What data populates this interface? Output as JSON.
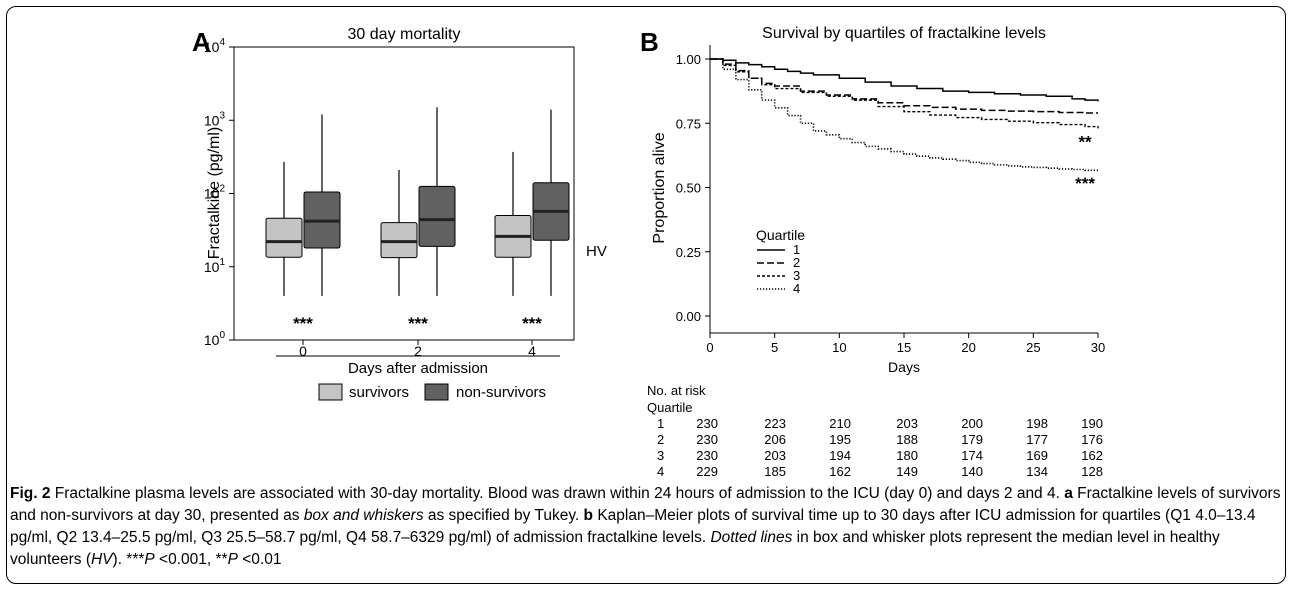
{
  "chart_data": [
    {
      "type": "box",
      "panel_label": "A",
      "title": "30 day mortality",
      "ylabel": "Fractalkine (pg/ml)",
      "xlabel": "Days after admission",
      "yscale": "log",
      "ylim": [
        1,
        10000
      ],
      "y_ticks": [
        {
          "value": 1,
          "base": "10",
          "exp": "0"
        },
        {
          "value": 10,
          "base": "10",
          "exp": "1"
        },
        {
          "value": 100,
          "base": "10",
          "exp": "2"
        },
        {
          "value": 1000,
          "base": "10",
          "exp": "3"
        },
        {
          "value": 10000,
          "base": "10",
          "exp": "4"
        }
      ],
      "categories": [
        "0",
        "2",
        "4"
      ],
      "series": [
        {
          "name": "survivors",
          "color": "#c4c4c4",
          "boxes": [
            {
              "whisker_low": 4,
              "q1": 13.5,
              "median": 22,
              "q3": 46,
              "whisker_high": 270
            },
            {
              "whisker_low": 4,
              "q1": 13.3,
              "median": 22,
              "q3": 40,
              "whisker_high": 210
            },
            {
              "whisker_low": 4,
              "q1": 13.5,
              "median": 26,
              "q3": 50,
              "whisker_high": 370
            }
          ]
        },
        {
          "name": "non-survivors",
          "color": "#616161",
          "boxes": [
            {
              "whisker_low": 4,
              "q1": 18,
              "median": 42,
              "q3": 105,
              "whisker_high": 1200
            },
            {
              "whisker_low": 4,
              "q1": 19,
              "median": 44,
              "q3": 125,
              "whisker_high": 1500
            },
            {
              "whisker_low": 4,
              "q1": 23,
              "median": 57,
              "q3": 140,
              "whisker_high": 1400
            }
          ]
        }
      ],
      "significance": [
        "***",
        "***",
        "***"
      ],
      "reference_label": "HV",
      "reference_value": 10
    },
    {
      "type": "line",
      "panel_label": "B",
      "title": "Survival by quartiles of fractalkine levels",
      "xlabel": "Days",
      "ylabel": "Proportion alive",
      "xlim": [
        0,
        30
      ],
      "ylim": [
        0,
        1
      ],
      "x_ticks": [
        "0",
        "5",
        "10",
        "15",
        "20",
        "25",
        "30"
      ],
      "y_ticks": [
        "0.00",
        "0.25",
        "0.50",
        "0.75",
        "1.00"
      ],
      "legend_title": "Quartile",
      "legend_position": "lower-left",
      "series": [
        {
          "name": "1",
          "dash": "solid",
          "points": [
            [
              0,
              1.0
            ],
            [
              1,
              0.995
            ],
            [
              2,
              0.985
            ],
            [
              3,
              0.978
            ],
            [
              4,
              0.97
            ],
            [
              5,
              0.96
            ],
            [
              6,
              0.952
            ],
            [
              7,
              0.945
            ],
            [
              8,
              0.938
            ],
            [
              10,
              0.925
            ],
            [
              12,
              0.91
            ],
            [
              14,
              0.895
            ],
            [
              16,
              0.885
            ],
            [
              18,
              0.875
            ],
            [
              20,
              0.87
            ],
            [
              22,
              0.865
            ],
            [
              24,
              0.86
            ],
            [
              26,
              0.855
            ],
            [
              28,
              0.845
            ],
            [
              29,
              0.84
            ],
            [
              30,
              0.835
            ]
          ]
        },
        {
          "name": "2",
          "dash": "dashed",
          "points": [
            [
              0,
              1.0
            ],
            [
              1,
              0.98
            ],
            [
              2,
              0.955
            ],
            [
              3,
              0.925
            ],
            [
              4,
              0.905
            ],
            [
              5,
              0.895
            ],
            [
              7,
              0.875
            ],
            [
              9,
              0.86
            ],
            [
              11,
              0.845
            ],
            [
              13,
              0.83
            ],
            [
              15,
              0.818
            ],
            [
              17,
              0.812
            ],
            [
              19,
              0.805
            ],
            [
              21,
              0.8
            ],
            [
              23,
              0.797
            ],
            [
              25,
              0.795
            ],
            [
              27,
              0.792
            ],
            [
              29,
              0.79
            ],
            [
              30,
              0.79
            ]
          ]
        },
        {
          "name": "3",
          "dash": "short-dashed",
          "points": [
            [
              0,
              1.0
            ],
            [
              1,
              0.975
            ],
            [
              2,
              0.95
            ],
            [
              3,
              0.925
            ],
            [
              4,
              0.9
            ],
            [
              5,
              0.885
            ],
            [
              7,
              0.87
            ],
            [
              9,
              0.855
            ],
            [
              11,
              0.84
            ],
            [
              13,
              0.815
            ],
            [
              15,
              0.795
            ],
            [
              17,
              0.782
            ],
            [
              19,
              0.772
            ],
            [
              21,
              0.765
            ],
            [
              23,
              0.758
            ],
            [
              25,
              0.752
            ],
            [
              27,
              0.745
            ],
            [
              29,
              0.737
            ],
            [
              30,
              0.73
            ]
          ]
        },
        {
          "name": "4",
          "dash": "dotted",
          "points": [
            [
              0,
              1.0
            ],
            [
              1,
              0.96
            ],
            [
              2,
              0.92
            ],
            [
              3,
              0.88
            ],
            [
              4,
              0.84
            ],
            [
              5,
              0.81
            ],
            [
              6,
              0.78
            ],
            [
              7,
              0.75
            ],
            [
              8,
              0.72
            ],
            [
              9,
              0.705
            ],
            [
              10,
              0.69
            ],
            [
              11,
              0.675
            ],
            [
              12,
              0.66
            ],
            [
              13,
              0.65
            ],
            [
              14,
              0.64
            ],
            [
              15,
              0.63
            ],
            [
              16,
              0.622
            ],
            [
              17,
              0.615
            ],
            [
              18,
              0.61
            ],
            [
              19,
              0.605
            ],
            [
              20,
              0.598
            ],
            [
              21,
              0.593
            ],
            [
              22,
              0.588
            ],
            [
              23,
              0.584
            ],
            [
              24,
              0.58
            ],
            [
              25,
              0.578
            ],
            [
              26,
              0.575
            ],
            [
              27,
              0.572
            ],
            [
              28,
              0.57
            ],
            [
              29,
              0.567
            ],
            [
              30,
              0.565
            ]
          ]
        }
      ],
      "annotations": [
        {
          "text": "**",
          "x": 29,
          "y": 0.655
        },
        {
          "text": "***",
          "x": 29,
          "y": 0.495
        }
      ],
      "risk_table": {
        "title": "No. at risk",
        "row_header": "Quartile",
        "rows": [
          {
            "label": "1",
            "values": [
              "230",
              "223",
              "210",
              "203",
              "200",
              "198",
              "190"
            ]
          },
          {
            "label": "2",
            "values": [
              "230",
              "206",
              "195",
              "188",
              "179",
              "177",
              "176"
            ]
          },
          {
            "label": "3",
            "values": [
              "230",
              "203",
              "194",
              "180",
              "174",
              "169",
              "162"
            ]
          },
          {
            "label": "4",
            "values": [
              "229",
              "185",
              "162",
              "149",
              "140",
              "134",
              "128"
            ]
          }
        ]
      }
    }
  ],
  "caption": {
    "figure_label": "Fig. 2",
    "seg1": " Fractalkine plasma levels are associated with 30-day mortality. Blood was drawn within 24 hours of admission to the ICU (day 0) and days 2 and 4. ",
    "label_a": "a",
    "seg2": " Fractalkine levels of survivors and non-survivors at day 30, presented as ",
    "em1": "box and whiskers",
    "seg3": " as specified by Tukey. ",
    "label_b": "b",
    "seg4": " Kaplan–Meier plots of survival time up to 30 days after ICU admission for quartiles (Q1 4.0–13.4 pg/ml, Q2 13.4–25.5 pg/ml, Q3 25.5–58.7 pg/ml, Q4 58.7–6329 pg/ml) of admission fractalkine levels. ",
    "em2": "Dotted lines",
    "seg5": " in box and whisker plots represent the median level in healthy volunteers (",
    "em3": "HV",
    "seg6": "). ***",
    "p1": "P",
    "seg7": " <0.001, **",
    "p2": "P",
    "seg8": " <0.01"
  }
}
